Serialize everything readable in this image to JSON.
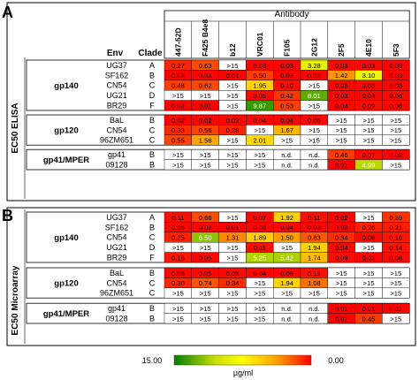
{
  "panels": [
    {
      "letter": "A",
      "side_label": "EC50 ELISA"
    },
    {
      "letter": "B",
      "side_label": "EC50 Microarray"
    }
  ],
  "header": {
    "antibody": "Antibody",
    "env": "Env",
    "clade": "Clade"
  },
  "antibodies": [
    "447-52D",
    "F425 B4e8",
    "b12",
    "VRC01",
    "F105",
    "2G12",
    "2F5",
    "4E10",
    "5F3"
  ],
  "legend": {
    "min_label": "15.00",
    "max_label": "0.00",
    "unit": "µg/ml",
    "colors": [
      "#008000",
      "#c8e000",
      "#ffff00",
      "#ffa000",
      "#ff0000"
    ]
  },
  "chart_data": [
    {
      "type": "heatmap",
      "title": "A",
      "ylabel": "EC50 ELISA",
      "xlabel": "Antibody",
      "columns": [
        "447-52D",
        "F425 B4e8",
        "b12",
        "VRC01",
        "F105",
        "2G12",
        "2F5",
        "4E10",
        "5F3"
      ],
      "color_scale": {
        "min": 0.0,
        "max": 15.0,
        "low_color": "#ff0000",
        "high_color": "#008000"
      },
      "groups": [
        {
          "name": "gp140",
          "rows": [
            {
              "env": "UG37",
              "clade": "A",
              "values": [
                "0.27",
                "0.63",
                ">15",
                "0.03",
                "0.03",
                "3.28",
                "0.03",
                "0.03",
                "0.03"
              ]
            },
            {
              "env": "SF162",
              "clade": "B",
              "values": [
                "0.02",
                "0.02",
                "0.01",
                "0.50",
                "0.02",
                "0.03",
                "1.42",
                "3.10",
                "0.03"
              ]
            },
            {
              "env": "CN54",
              "clade": "C",
              "values": [
                "0.48",
                "0.62",
                ">15",
                "1.95",
                "0.10",
                ">15",
                "0.03",
                "0.03",
                "0.03"
              ]
            },
            {
              "env": "UG21",
              "clade": "D",
              "values": [
                ">15",
                ">15",
                ">15",
                "0.05",
                "0.42",
                "8.01",
                "0.03",
                "0.04",
                "0.06"
              ]
            },
            {
              "env": "BR29",
              "clade": "F",
              "values": [
                "0.02",
                "0.01",
                ">15",
                "9.87",
                "0.53",
                ">15",
                "0.04",
                "0.09",
                "0.06"
              ]
            }
          ]
        },
        {
          "name": "gp120",
          "rows": [
            {
              "env": "BaL",
              "clade": "B",
              "values": [
                "0.02",
                "0.02",
                "0.03",
                "0.04",
                "0.04",
                "0.05",
                ">15",
                ">15",
                ">15"
              ]
            },
            {
              "env": "CN54",
              "clade": "C",
              "values": [
                "0.33",
                "0.56",
                "0.28",
                ">15",
                "1.67",
                ">15",
                ">15",
                ">15",
                ">15"
              ]
            },
            {
              "env": "96ZM651",
              "clade": "C",
              "values": [
                "0.55",
                "1.56",
                ">15",
                "2.01",
                ">15",
                ">15",
                ">15",
                ">15",
                ">15"
              ]
            }
          ]
        },
        {
          "name": "gp41/MPER",
          "rows": [
            {
              "env": "gp41",
              "clade": "B",
              "values": [
                ">15",
                ">15",
                ">15",
                ">15",
                "n.d.",
                "n.d.",
                "0.46",
                "0.07",
                "0.02"
              ]
            },
            {
              "env": "09128",
              "clade": "B",
              "values": [
                ">15",
                ">15",
                ">15",
                ">15",
                "n.d.",
                "n.d.",
                "0.01",
                "4.99",
                ">15"
              ]
            }
          ]
        }
      ]
    },
    {
      "type": "heatmap",
      "title": "B",
      "ylabel": "EC50 Microarray",
      "xlabel": "",
      "columns": [
        "447-52D",
        "F425 B4e8",
        "b12",
        "VRC01",
        "F105",
        "2G12",
        "2F5",
        "4E10",
        "5F3"
      ],
      "color_scale": {
        "min": 0.0,
        "max": 15.0,
        "low_color": "#ff0000",
        "high_color": "#008000"
      },
      "groups": [
        {
          "name": "gp140",
          "rows": [
            {
              "env": "UG37",
              "clade": "A",
              "values": [
                "0.11",
                "0.66",
                ">15",
                "0.07",
                "1.92",
                "0.11",
                "0.02",
                ">15",
                "0.39"
              ]
            },
            {
              "env": "SF162",
              "clade": "B",
              "values": [
                "0.05",
                "0.02",
                "0.01",
                "0.02",
                "0.04",
                "0.03",
                "0.02",
                "0.26",
                "0.21"
              ]
            },
            {
              "env": "CN54",
              "clade": "C",
              "values": [
                "0.25",
                "6.50",
                "1.31",
                "1.89",
                "1.50",
                "0.83",
                "0.34",
                "0.06",
                "0.16"
              ]
            },
            {
              "env": "UG21",
              "clade": "D",
              "values": [
                ">15",
                ">15",
                ">15",
                "0.11",
                ">15",
                "1.94",
                "0.04",
                ">15",
                "0.14"
              ]
            },
            {
              "env": "BR29",
              "clade": "F",
              "values": [
                "0.16",
                "0.05",
                ">15",
                "5.25",
                "5.42",
                "1.74",
                "0.09",
                "0.03",
                "0.08"
              ]
            }
          ]
        },
        {
          "name": "gp120",
          "rows": [
            {
              "env": "BaL",
              "clade": "B",
              "values": [
                "0.05",
                "0.05",
                "0.05",
                "0.04",
                "0.05",
                "0.12",
                ">15",
                ">15",
                ">15"
              ]
            },
            {
              "env": "CN54",
              "clade": "C",
              "values": [
                "0.30",
                "0.74",
                "0.34",
                ">15",
                "1.94",
                "1.08",
                ">15",
                ">15",
                ">15"
              ]
            },
            {
              "env": "96ZM651",
              "clade": "C",
              "values": [
                ">15",
                ">15",
                ">15",
                ">15",
                ">15",
                ">15",
                ">15",
                ">15",
                ">15"
              ]
            }
          ]
        },
        {
          "name": "gp41/MPER",
          "rows": [
            {
              "env": "gp41",
              "clade": "B",
              "values": [
                ">15",
                ">15",
                ">15",
                ">15",
                "n.d.",
                "n.d.",
                "0.01",
                "0.01",
                "0.01"
              ]
            },
            {
              "env": "09128",
              "clade": "B",
              "values": [
                ">15",
                ">15",
                ">15",
                ">15",
                "n.d.",
                "n.d.",
                "0.01",
                "0.45",
                ">15"
              ]
            }
          ]
        }
      ]
    }
  ]
}
